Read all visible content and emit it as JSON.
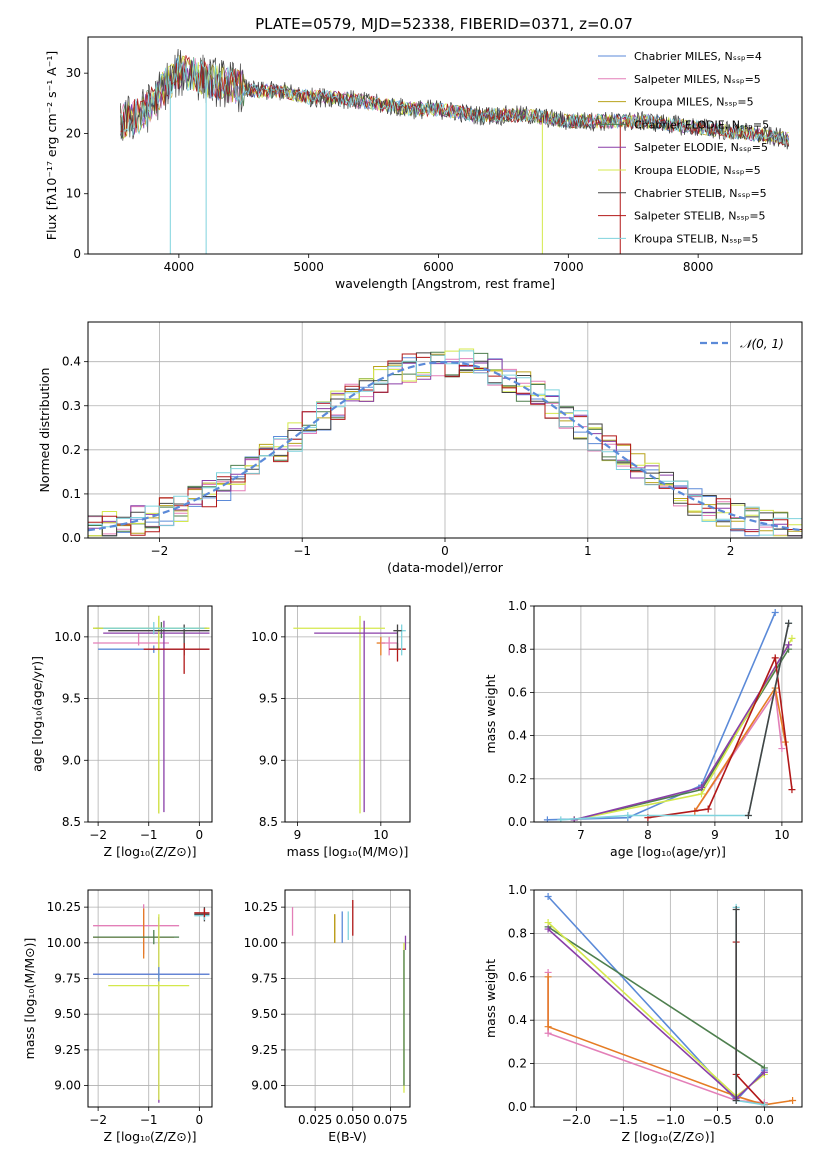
{
  "figure_title": "PLATE=0579, MJD=52338, FIBERID=0371, z=0.07",
  "colors": {
    "Chabrier MILES": "#5b8ad8",
    "Salpeter MILES": "#e37fb8",
    "Kroupa MILES": "#b8a21c",
    "Chabrier ELODIE": "#4e7f4e",
    "Salpeter ELODIE": "#8a3fa8",
    "Kroupa ELODIE": "#d4e84c",
    "Chabrier STELIB": "#444444",
    "Salpeter STELIB": "#b21818",
    "Kroupa STELIB": "#7fd3dd",
    "orange": "#e57c24"
  },
  "chart_data": [
    {
      "id": "spectrum",
      "type": "line",
      "xlabel": "wavelength [Angstrom, rest frame]",
      "ylabel": "Flux [fλ10⁻¹⁷ erg cm⁻² s⁻¹ A⁻¹]",
      "xlim": [
        3300,
        8800
      ],
      "ylim": [
        0,
        36
      ],
      "xticks": [
        "4000",
        "5000",
        "6000",
        "7000",
        "8000"
      ],
      "yticks": [
        "0",
        "10",
        "20",
        "30"
      ],
      "grid": false,
      "legend_position": "upper right",
      "legend": [
        "Chabrier MILES, Nₛₛₚ=4",
        "Salpeter MILES, Nₛₛₚ=5",
        "Kroupa MILES, Nₛₛₚ=5",
        "Chabrier ELODIE, Nₛₛₚ=5",
        "Salpeter ELODIE, Nₛₛₚ=5",
        "Kroupa ELODIE, Nₛₛₚ=5",
        "Chabrier STELIB, Nₛₛₚ=5",
        "Salpeter STELIB, Nₛₛₚ=5",
        "Kroupa STELIB, Nₛₛₚ=5"
      ],
      "continuum_x": [
        3550,
        3700,
        3800,
        3900,
        4000,
        4100,
        4200,
        4400,
        4600,
        4800,
        5000,
        5200,
        5500,
        5800,
        6000,
        6300,
        6500,
        6700,
        7000,
        7300,
        7600,
        8000,
        8400,
        8700
      ],
      "continuum_y": [
        22,
        23,
        25,
        28,
        30,
        30,
        29,
        28,
        27,
        27,
        26,
        26,
        25,
        24,
        24,
        23,
        23,
        23,
        22,
        22,
        22,
        21,
        20,
        19
      ],
      "dips_x": [
        3934,
        4210,
        6800,
        7400
      ]
    },
    {
      "id": "residuals",
      "type": "histogram",
      "xlabel": "(data-model)/error",
      "ylabel": "Normed distribution",
      "xlim": [
        -2.5,
        2.5
      ],
      "ylim": [
        0,
        0.49
      ],
      "xticks": [
        "−2",
        "−1",
        "0",
        "1",
        "2"
      ],
      "yticks": [
        "0.0",
        "0.1",
        "0.2",
        "0.3",
        "0.4"
      ],
      "grid": true,
      "legend": [
        "𝒩(0, 1)"
      ],
      "bins": 50,
      "bin_range": [
        -2.5,
        2.5
      ]
    },
    {
      "id": "age_vs_Z",
      "type": "errorbar",
      "xlabel": "Z [log₁₀(Z/Z⊙)]",
      "ylabel": "age  [log₁₀(age/yr)]",
      "xlim": [
        -2.2,
        0.25
      ],
      "ylim": [
        8.5,
        10.25
      ],
      "xticks": [
        "−2",
        "−1",
        "0"
      ],
      "yticks": [
        "8.5",
        "9.0",
        "9.5",
        "10.0"
      ],
      "grid": true,
      "points": [
        {
          "c": "Chabrier MILES",
          "x": -0.9,
          "xe": [
            1.1,
            1.1
          ],
          "y": 9.9,
          "ye": [
            0.03,
            0.03
          ]
        },
        {
          "c": "Salpeter MILES",
          "x": -1.2,
          "xe": [
            0.9,
            0.6
          ],
          "y": 9.95,
          "ye": [
            0.02,
            0.08
          ]
        },
        {
          "c": "Kroupa MILES",
          "x": -0.8,
          "xe": [
            1.3,
            1.0
          ],
          "y": 10.07,
          "ye": [
            1.5,
            0.1
          ]
        },
        {
          "c": "Chabrier ELODIE",
          "x": -0.75,
          "xe": [
            1.3,
            0.9
          ],
          "y": 10.07,
          "ye": [
            0.08,
            0.05
          ]
        },
        {
          "c": "Salpeter ELODIE",
          "x": -0.7,
          "xe": [
            1.2,
            0.9
          ],
          "y": 10.03,
          "ye": [
            1.45,
            0.1
          ]
        },
        {
          "c": "Kroupa ELODIE",
          "x": -0.8,
          "xe": [
            1.3,
            1.0
          ],
          "y": 10.07,
          "ye": [
            1.5,
            0.1
          ]
        },
        {
          "c": "Chabrier STELIB",
          "x": -0.3,
          "xe": [
            1.5,
            0.5
          ],
          "y": 10.05,
          "ye": [
            0.2,
            0.05
          ]
        },
        {
          "c": "Salpeter STELIB",
          "x": -0.3,
          "xe": [
            0.8,
            0.5
          ],
          "y": 9.9,
          "ye": [
            0.2,
            0.05
          ]
        },
        {
          "c": "Kroupa STELIB",
          "x": -0.9,
          "xe": [
            1.0,
            1.0
          ],
          "y": 10.07,
          "ye": [
            0.05,
            0.05
          ]
        }
      ]
    },
    {
      "id": "age_vs_mass",
      "type": "errorbar",
      "xlabel": "mass [log₁₀(M/M⊙)]",
      "ylabel": "",
      "xlim": [
        8.85,
        10.35
      ],
      "ylim": [
        8.5,
        10.25
      ],
      "xticks": [
        "9",
        "10"
      ],
      "yticks": [
        "8.5",
        "9.0",
        "9.5",
        "10.0"
      ],
      "grid": true,
      "points": [
        {
          "c": "Kroupa ELODIE",
          "x": 9.75,
          "xe": [
            0.8,
            0.3
          ],
          "y": 10.07,
          "ye": [
            1.5,
            0.1
          ]
        },
        {
          "c": "Salpeter ELODIE",
          "x": 9.8,
          "xe": [
            0.6,
            0.4
          ],
          "y": 10.03,
          "ye": [
            1.45,
            0.1
          ]
        },
        {
          "c": "orange",
          "x": 10.0,
          "xe": [
            0.05,
            0.05
          ],
          "y": 9.95,
          "ye": [
            0.1,
            0.05
          ]
        },
        {
          "c": "Salpeter MILES",
          "x": 10.1,
          "xe": [
            0.1,
            0.1
          ],
          "y": 9.95,
          "ye": [
            0.1,
            0.05
          ]
        },
        {
          "c": "Salpeter STELIB",
          "x": 10.2,
          "xe": [
            0.1,
            0.1
          ],
          "y": 9.9,
          "ye": [
            0.1,
            0.05
          ]
        },
        {
          "c": "Kroupa STELIB",
          "x": 10.25,
          "xe": [
            0.05,
            0.05
          ],
          "y": 10.05,
          "ye": [
            0.2,
            0.05
          ]
        },
        {
          "c": "Chabrier STELIB",
          "x": 10.2,
          "xe": [
            0.05,
            0.05
          ],
          "y": 10.05,
          "ye": [
            0.15,
            0.05
          ]
        }
      ]
    },
    {
      "id": "weight_vs_age",
      "type": "line",
      "xlabel": "age  [log₁₀(age/yr)]",
      "ylabel": "mass weight",
      "xlim": [
        6.3,
        10.3
      ],
      "ylim": [
        0,
        1.0
      ],
      "xticks": [
        "7",
        "8",
        "9",
        "10"
      ],
      "yticks": [
        "0.0",
        "0.2",
        "0.4",
        "0.6",
        "0.8",
        "1.0"
      ],
      "grid": true,
      "series": [
        {
          "c": "Chabrier MILES",
          "x": [
            6.5,
            7.7,
            8.8,
            9.9
          ],
          "y": [
            0.01,
            0.02,
            0.17,
            0.97
          ]
        },
        {
          "c": "Salpeter MILES",
          "x": [
            8.7,
            9.9,
            10.0
          ],
          "y": [
            0.05,
            0.6,
            0.34
          ]
        },
        {
          "c": "orange",
          "x": [
            8.7,
            9.9,
            10.05
          ],
          "y": [
            0.05,
            0.62,
            0.37
          ]
        },
        {
          "c": "Chabrier ELODIE",
          "x": [
            6.9,
            8.8,
            10.1
          ],
          "y": [
            0.01,
            0.15,
            0.8
          ]
        },
        {
          "c": "Kroupa ELODIE",
          "x": [
            6.9,
            8.8,
            10.15
          ],
          "y": [
            0.01,
            0.13,
            0.85
          ]
        },
        {
          "c": "Salpeter ELODIE",
          "x": [
            6.9,
            8.8,
            10.1
          ],
          "y": [
            0.01,
            0.16,
            0.82
          ]
        },
        {
          "c": "Salpeter STELIB",
          "x": [
            8.0,
            8.9,
            9.9,
            10.15
          ],
          "y": [
            0.02,
            0.06,
            0.76,
            0.15
          ]
        },
        {
          "c": "Kroupa STELIB",
          "x": [
            6.7,
            7.7,
            9.5,
            10.1
          ],
          "y": [
            0.01,
            0.03,
            0.03,
            0.92
          ]
        },
        {
          "c": "Chabrier STELIB",
          "x": [
            9.5,
            10.1
          ],
          "y": [
            0.03,
            0.92
          ]
        }
      ]
    },
    {
      "id": "mass_vs_Z",
      "type": "errorbar",
      "xlabel": "Z [log₁₀(Z/Z⊙)]",
      "ylabel": "mass [log₁₀(M/M⊙)]",
      "xlim": [
        -2.2,
        0.25
      ],
      "ylim": [
        8.85,
        10.37
      ],
      "xticks": [
        "−2",
        "−1",
        "0"
      ],
      "yticks": [
        "9.00",
        "9.25",
        "9.50",
        "9.75",
        "10.00",
        "10.25"
      ],
      "grid": true,
      "points": [
        {
          "c": "Salpeter MILES",
          "x": -1.1,
          "xe": [
            1.0,
            0.7
          ],
          "y": 10.12,
          "ye": [
            0.2,
            0.15
          ]
        },
        {
          "c": "orange",
          "x": -1.1,
          "xe": [
            1.0,
            0.6
          ],
          "y": 10.04,
          "ye": [
            0.15,
            0.2
          ]
        },
        {
          "c": "Chabrier ELODIE",
          "x": -0.9,
          "xe": [
            1.2,
            0.5
          ],
          "y": 10.04,
          "ye": [
            0.05,
            0.05
          ]
        },
        {
          "c": "Salpeter ELODIE",
          "x": -0.8,
          "xe": [
            1.3,
            1.0
          ],
          "y": 9.78,
          "ye": [
            0.9,
            0.4
          ]
        },
        {
          "c": "Kroupa ELODIE",
          "x": -0.8,
          "xe": [
            1.0,
            0.6
          ],
          "y": 9.7,
          "ye": [
            0.8,
            0.5
          ]
        },
        {
          "c": "Chabrier MILES",
          "x": -0.8,
          "xe": [
            1.3,
            1.0
          ],
          "y": 9.78,
          "ye": [
            0.05,
            0.05
          ]
        },
        {
          "c": "Chabrier STELIB",
          "x": 0.1,
          "xe": [
            0.2,
            0.1
          ],
          "y": 10.2,
          "ye": [
            0.05,
            0.05
          ]
        },
        {
          "c": "Kroupa STELIB",
          "x": 0.1,
          "xe": [
            0.2,
            0.1
          ],
          "y": 10.19,
          "ye": [
            0.03,
            0.03
          ]
        },
        {
          "c": "Salpeter STELIB",
          "x": 0.1,
          "xe": [
            0.2,
            0.1
          ],
          "y": 10.21,
          "ye": [
            0.03,
            0.03
          ]
        }
      ]
    },
    {
      "id": "mass_vs_ebv",
      "type": "errorbar",
      "xlabel": "E(B-V)",
      "ylabel": "",
      "xlim": [
        0.005,
        0.088
      ],
      "ylim": [
        8.85,
        10.37
      ],
      "xticks": [
        "0.025",
        "0.050",
        "0.075"
      ],
      "yticks": [
        "9.00",
        "9.25",
        "9.50",
        "9.75",
        "10.00",
        "10.25"
      ],
      "grid": true,
      "points": [
        {
          "c": "Salpeter MILES",
          "x": 0.01,
          "y": 10.15,
          "ye": [
            0.1,
            0.1
          ]
        },
        {
          "c": "orange",
          "x": 0.038,
          "y": 10.1,
          "ye": [
            0.1,
            0.1
          ]
        },
        {
          "c": "Kroupa MILES",
          "x": 0.038,
          "y": 10.1,
          "ye": [
            0.1,
            0.1
          ]
        },
        {
          "c": "Chabrier MILES",
          "x": 0.043,
          "y": 10.12,
          "ye": [
            0.12,
            0.1
          ]
        },
        {
          "c": "Kroupa STELIB",
          "x": 0.047,
          "y": 10.12,
          "ye": [
            0.1,
            0.1
          ]
        },
        {
          "c": "Salpeter STELIB",
          "x": 0.05,
          "y": 10.15,
          "ye": [
            0.1,
            0.15
          ]
        },
        {
          "c": "Salpeter ELODIE",
          "x": 0.085,
          "y": 10.0,
          "ye": [
            0.05,
            0.05
          ]
        },
        {
          "c": "Kroupa ELODIE",
          "x": 0.084,
          "y": 9.5,
          "ye": [
            0.55,
            0.5
          ]
        },
        {
          "c": "Chabrier ELODIE",
          "x": 0.084,
          "y": 9.5,
          "ye": [
            0.5,
            0.45
          ]
        }
      ]
    },
    {
      "id": "weight_vs_Z",
      "type": "line",
      "xlabel": "Z [log₁₀(Z/Z⊙)]",
      "ylabel": "mass weight",
      "xlim": [
        -2.45,
        0.4
      ],
      "ylim": [
        0,
        1.0
      ],
      "xticks": [
        "−2.0",
        "−1.5",
        "−1.0",
        "−0.5",
        "0.0"
      ],
      "yticks": [
        "0.0",
        "0.2",
        "0.4",
        "0.6",
        "0.8",
        "1.0"
      ],
      "grid": true,
      "series": [
        {
          "c": "Chabrier MILES",
          "x": [
            -2.3,
            -0.3,
            0.0
          ],
          "y": [
            0.97,
            0.03,
            0.17
          ]
        },
        {
          "c": "Salpeter MILES",
          "x": [
            -2.3,
            -2.3,
            -0.3,
            0.0
          ],
          "y": [
            0.62,
            0.34,
            0.03,
            0.02
          ]
        },
        {
          "c": "orange",
          "x": [
            -2.3,
            -2.3,
            -0.3,
            0.0,
            0.3
          ],
          "y": [
            0.6,
            0.37,
            0.05,
            0.01,
            0.03
          ]
        },
        {
          "c": "Chabrier ELODIE",
          "x": [
            -2.3,
            0.0
          ],
          "y": [
            0.83,
            0.18
          ]
        },
        {
          "c": "Kroupa ELODIE",
          "x": [
            -2.3,
            -0.3,
            0.0
          ],
          "y": [
            0.85,
            0.05,
            0.15
          ]
        },
        {
          "c": "Salpeter ELODIE",
          "x": [
            -2.3,
            -0.3,
            0.0
          ],
          "y": [
            0.82,
            0.04,
            0.16
          ]
        },
        {
          "c": "Salpeter STELIB",
          "x": [
            -0.3,
            -0.3,
            0.0
          ],
          "y": [
            0.76,
            0.15,
            0.01
          ]
        },
        {
          "c": "Kroupa STELIB",
          "x": [
            -0.3,
            -0.3,
            0.0
          ],
          "y": [
            0.92,
            0.03,
            0.01
          ]
        },
        {
          "c": "Chabrier STELIB",
          "x": [
            -0.3,
            -0.3
          ],
          "y": [
            0.91,
            0.03
          ]
        }
      ]
    }
  ]
}
